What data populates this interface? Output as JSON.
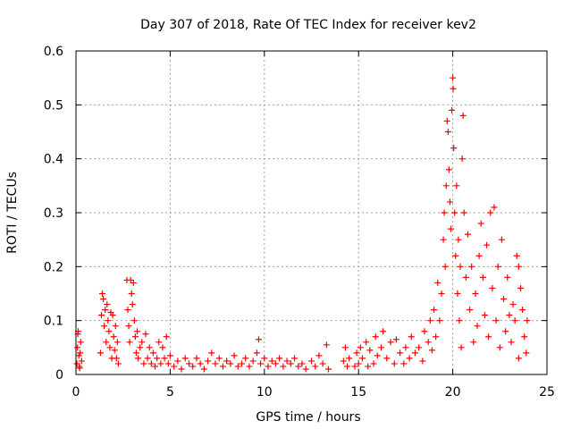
{
  "chart_data": {
    "type": "scatter",
    "title": "Day 307 of 2018, Rate Of TEC Index for receiver kev2",
    "xlabel": "GPS time / hours",
    "ylabel": "ROTI / TECUs",
    "xlim": [
      0,
      25
    ],
    "ylim": [
      0,
      0.6
    ],
    "x_ticks": [
      0,
      5,
      10,
      15,
      20,
      25
    ],
    "x_tick_labels": [
      "0",
      "5",
      "10",
      "15",
      "20",
      "25"
    ],
    "y_ticks": [
      0,
      0.1,
      0.2,
      0.3,
      0.4,
      0.5,
      0.6
    ],
    "y_tick_labels": [
      "0",
      "0.1",
      "0.2",
      "0.3",
      "0.4",
      "0.5",
      "0.6"
    ],
    "grid": true,
    "marker": "plus",
    "color": "#ff0000",
    "points": [
      [
        0.05,
        0.02
      ],
      [
        0.08,
        0.05
      ],
      [
        0.1,
        0.075
      ],
      [
        0.12,
        0.08
      ],
      [
        0.15,
        0.035
      ],
      [
        0.2,
        0.012
      ],
      [
        0.25,
        0.06
      ],
      [
        0.3,
        0.025
      ],
      [
        0.18,
        0.015
      ],
      [
        0.22,
        0.04
      ],
      [
        1.3,
        0.04
      ],
      [
        1.35,
        0.11
      ],
      [
        1.4,
        0.15
      ],
      [
        1.45,
        0.14
      ],
      [
        1.5,
        0.09
      ],
      [
        1.55,
        0.12
      ],
      [
        1.6,
        0.06
      ],
      [
        1.7,
        0.1
      ],
      [
        1.75,
        0.08
      ],
      [
        1.8,
        0.05
      ],
      [
        1.9,
        0.03
      ],
      [
        1.95,
        0.11
      ],
      [
        2.0,
        0.07
      ],
      [
        2.05,
        0.045
      ],
      [
        2.1,
        0.09
      ],
      [
        2.15,
        0.03
      ],
      [
        2.2,
        0.06
      ],
      [
        2.25,
        0.02
      ],
      [
        1.65,
        0.13
      ],
      [
        1.85,
        0.115
      ],
      [
        2.7,
        0.175
      ],
      [
        2.75,
        0.12
      ],
      [
        2.8,
        0.09
      ],
      [
        2.85,
        0.06
      ],
      [
        2.9,
        0.175
      ],
      [
        2.95,
        0.15
      ],
      [
        3.0,
        0.13
      ],
      [
        3.05,
        0.17
      ],
      [
        3.1,
        0.1
      ],
      [
        3.15,
        0.07
      ],
      [
        3.2,
        0.04
      ],
      [
        3.25,
        0.08
      ],
      [
        3.3,
        0.03
      ],
      [
        3.4,
        0.05
      ],
      [
        3.5,
        0.06
      ],
      [
        3.6,
        0.02
      ],
      [
        3.7,
        0.075
      ],
      [
        3.8,
        0.03
      ],
      [
        3.9,
        0.05
      ],
      [
        4.0,
        0.02
      ],
      [
        4.1,
        0.04
      ],
      [
        4.2,
        0.015
      ],
      [
        4.3,
        0.03
      ],
      [
        4.4,
        0.06
      ],
      [
        4.5,
        0.02
      ],
      [
        4.6,
        0.05
      ],
      [
        4.7,
        0.03
      ],
      [
        4.8,
        0.07
      ],
      [
        4.9,
        0.02
      ],
      [
        5.0,
        0.035
      ],
      [
        5.2,
        0.015
      ],
      [
        5.4,
        0.025
      ],
      [
        5.6,
        0.01
      ],
      [
        5.8,
        0.03
      ],
      [
        6.0,
        0.02
      ],
      [
        6.2,
        0.015
      ],
      [
        6.4,
        0.03
      ],
      [
        6.6,
        0.02
      ],
      [
        6.8,
        0.01
      ],
      [
        7.0,
        0.025
      ],
      [
        7.2,
        0.04
      ],
      [
        7.4,
        0.02
      ],
      [
        7.6,
        0.03
      ],
      [
        7.8,
        0.015
      ],
      [
        8.0,
        0.025
      ],
      [
        8.2,
        0.02
      ],
      [
        8.4,
        0.035
      ],
      [
        8.6,
        0.015
      ],
      [
        8.8,
        0.02
      ],
      [
        9.0,
        0.03
      ],
      [
        9.2,
        0.015
      ],
      [
        9.4,
        0.025
      ],
      [
        9.6,
        0.04
      ],
      [
        9.7,
        0.065
      ],
      [
        9.8,
        0.02
      ],
      [
        10.0,
        0.03
      ],
      [
        10.2,
        0.015
      ],
      [
        10.4,
        0.025
      ],
      [
        10.6,
        0.02
      ],
      [
        10.8,
        0.03
      ],
      [
        11.0,
        0.015
      ],
      [
        11.2,
        0.025
      ],
      [
        11.4,
        0.02
      ],
      [
        11.6,
        0.03
      ],
      [
        11.8,
        0.015
      ],
      [
        12.0,
        0.02
      ],
      [
        12.2,
        0.01
      ],
      [
        12.5,
        0.025
      ],
      [
        12.7,
        0.015
      ],
      [
        12.9,
        0.035
      ],
      [
        13.1,
        0.02
      ],
      [
        13.3,
        0.055
      ],
      [
        13.4,
        0.01
      ],
      [
        14.2,
        0.025
      ],
      [
        14.3,
        0.05
      ],
      [
        14.4,
        0.015
      ],
      [
        14.5,
        0.03
      ],
      [
        14.8,
        0.015
      ],
      [
        14.9,
        0.04
      ],
      [
        15.0,
        0.02
      ],
      [
        15.1,
        0.05
      ],
      [
        15.2,
        0.03
      ],
      [
        15.4,
        0.06
      ],
      [
        15.5,
        0.015
      ],
      [
        15.6,
        0.045
      ],
      [
        15.8,
        0.02
      ],
      [
        15.9,
        0.07
      ],
      [
        16.0,
        0.035
      ],
      [
        16.2,
        0.05
      ],
      [
        16.3,
        0.08
      ],
      [
        16.5,
        0.03
      ],
      [
        16.7,
        0.06
      ],
      [
        16.9,
        0.02
      ],
      [
        17.0,
        0.065
      ],
      [
        17.2,
        0.04
      ],
      [
        17.4,
        0.02
      ],
      [
        17.5,
        0.05
      ],
      [
        17.7,
        0.03
      ],
      [
        17.8,
        0.07
      ],
      [
        18.0,
        0.04
      ],
      [
        18.2,
        0.05
      ],
      [
        18.4,
        0.025
      ],
      [
        18.5,
        0.08
      ],
      [
        18.7,
        0.06
      ],
      [
        18.8,
        0.1
      ],
      [
        18.9,
        0.045
      ],
      [
        19.0,
        0.12
      ],
      [
        19.1,
        0.07
      ],
      [
        19.2,
        0.17
      ],
      [
        19.3,
        0.1
      ],
      [
        19.4,
        0.15
      ],
      [
        19.5,
        0.25
      ],
      [
        19.55,
        0.3
      ],
      [
        19.6,
        0.2
      ],
      [
        19.65,
        0.35
      ],
      [
        19.7,
        0.47
      ],
      [
        19.75,
        0.45
      ],
      [
        19.8,
        0.38
      ],
      [
        19.85,
        0.32
      ],
      [
        19.9,
        0.27
      ],
      [
        19.95,
        0.49
      ],
      [
        20.0,
        0.55
      ],
      [
        20.02,
        0.53
      ],
      [
        20.05,
        0.42
      ],
      [
        20.1,
        0.3
      ],
      [
        20.15,
        0.22
      ],
      [
        20.2,
        0.35
      ],
      [
        20.25,
        0.15
      ],
      [
        20.3,
        0.25
      ],
      [
        20.35,
        0.1
      ],
      [
        20.4,
        0.2
      ],
      [
        20.45,
        0.05
      ],
      [
        20.5,
        0.4
      ],
      [
        20.55,
        0.48
      ],
      [
        20.6,
        0.3
      ],
      [
        20.7,
        0.18
      ],
      [
        20.8,
        0.26
      ],
      [
        20.9,
        0.12
      ],
      [
        21.0,
        0.2
      ],
      [
        21.1,
        0.06
      ],
      [
        21.2,
        0.15
      ],
      [
        21.3,
        0.09
      ],
      [
        21.4,
        0.22
      ],
      [
        21.5,
        0.28
      ],
      [
        21.6,
        0.18
      ],
      [
        21.7,
        0.11
      ],
      [
        21.8,
        0.24
      ],
      [
        21.9,
        0.07
      ],
      [
        22.0,
        0.3
      ],
      [
        22.1,
        0.16
      ],
      [
        22.2,
        0.31
      ],
      [
        22.3,
        0.1
      ],
      [
        22.4,
        0.2
      ],
      [
        22.5,
        0.05
      ],
      [
        22.6,
        0.25
      ],
      [
        22.7,
        0.14
      ],
      [
        22.8,
        0.08
      ],
      [
        22.9,
        0.18
      ],
      [
        23.0,
        0.11
      ],
      [
        23.1,
        0.06
      ],
      [
        23.2,
        0.13
      ],
      [
        23.3,
        0.1
      ],
      [
        23.4,
        0.22
      ],
      [
        23.5,
        0.2
      ],
      [
        23.6,
        0.16
      ],
      [
        23.7,
        0.12
      ],
      [
        23.8,
        0.07
      ],
      [
        23.9,
        0.04
      ],
      [
        23.95,
        0.1
      ],
      [
        23.5,
        0.03
      ]
    ]
  }
}
